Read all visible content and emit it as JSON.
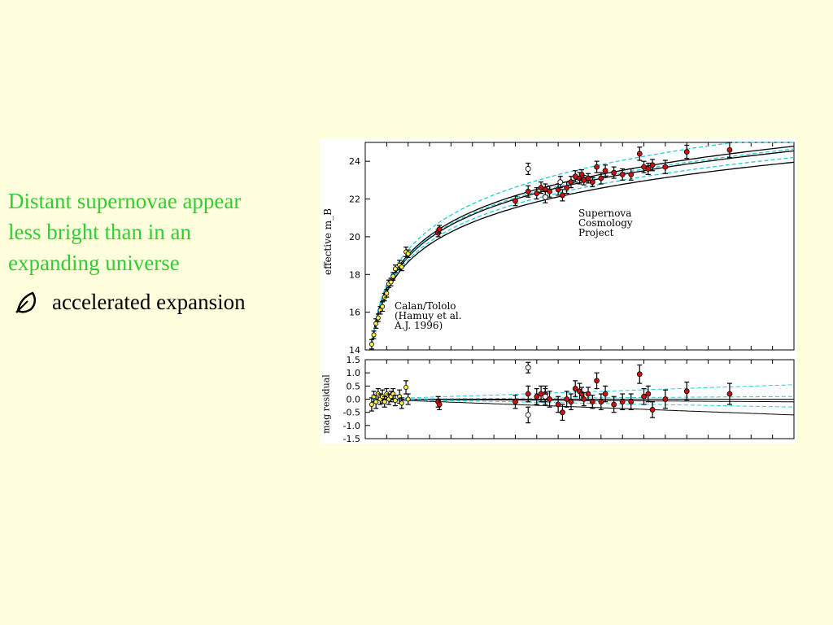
{
  "slide": {
    "main_text": "Distant supernovae  appear\nless bright than  in an\nexpanding universe",
    "bullet_icon": "leaf-bullet-icon",
    "bullet_text": "accelerated expansion",
    "colors": {
      "background": "#FFFFDD",
      "green_text": "#33CC33",
      "bullet_text": "#000000"
    }
  },
  "figure_annotations": {
    "scp": "Supernova\nCosmology\nProject",
    "calan": "Calan/Tololo\n(Hamuy et al.\nA.J. 1996)"
  },
  "chart_data": [
    {
      "type": "scatter",
      "title": "",
      "xlabel": "",
      "ylabel": "effective m_B",
      "ylim": [
        14,
        25
      ],
      "xlim": [
        0,
        1
      ],
      "yticks": [
        14,
        16,
        18,
        20,
        22,
        24
      ],
      "grid": false,
      "series": [
        {
          "name": "Calan/Tololo",
          "color": "#FFEE44",
          "marker": "circle",
          "x": [
            0.015,
            0.02,
            0.025,
            0.03,
            0.035,
            0.04,
            0.045,
            0.05,
            0.055,
            0.06,
            0.065,
            0.07,
            0.08,
            0.085,
            0.095,
            0.1
          ],
          "y": [
            14.3,
            14.8,
            15.4,
            15.7,
            16.1,
            16.3,
            16.8,
            17.0,
            17.5,
            17.6,
            17.9,
            18.3,
            18.5,
            18.4,
            19.2,
            19.1
          ],
          "err": [
            0.25,
            0.2,
            0.25,
            0.2,
            0.2,
            0.25,
            0.2,
            0.2,
            0.2,
            0.2,
            0.2,
            0.2,
            0.25,
            0.2,
            0.25,
            0.2
          ]
        },
        {
          "name": "Supernova Cosmology Project",
          "color": "#CC1111",
          "marker": "circle",
          "x": [
            0.17,
            0.173,
            0.35,
            0.38,
            0.4,
            0.41,
            0.42,
            0.43,
            0.45,
            0.46,
            0.47,
            0.48,
            0.49,
            0.5,
            0.505,
            0.51,
            0.52,
            0.53,
            0.54,
            0.55,
            0.56,
            0.58,
            0.6,
            0.62,
            0.64,
            0.65,
            0.66,
            0.67,
            0.7,
            0.75,
            0.85
          ],
          "y": [
            20.2,
            20.4,
            21.9,
            22.4,
            22.3,
            22.6,
            22.5,
            22.4,
            22.5,
            22.2,
            22.6,
            22.9,
            23.2,
            23.1,
            23.3,
            23.0,
            23.1,
            22.9,
            23.7,
            23.1,
            23.5,
            23.4,
            23.3,
            23.3,
            24.4,
            23.7,
            23.6,
            23.8,
            23.7,
            24.5,
            24.6
          ],
          "err": [
            0.2,
            0.2,
            0.25,
            0.3,
            0.3,
            0.3,
            0.3,
            0.3,
            0.3,
            0.3,
            0.3,
            0.3,
            0.3,
            0.3,
            0.25,
            0.25,
            0.25,
            0.25,
            0.3,
            0.3,
            0.3,
            0.3,
            0.3,
            0.3,
            0.35,
            0.3,
            0.3,
            0.3,
            0.35,
            0.35,
            0.4
          ]
        },
        {
          "name": "",
          "color": "#FFFFFF",
          "marker": "open-circle",
          "x": [
            0.38,
            0.42,
            0.455
          ],
          "y": [
            23.6,
            22.1,
            22.9
          ],
          "err": [
            0.3,
            0.3,
            0.3
          ]
        }
      ],
      "models": [
        {
          "style": "solid",
          "color": "#000000",
          "y_at_1": 23.95
        },
        {
          "style": "solid",
          "color": "#000000",
          "y_at_1": 24.55
        },
        {
          "style": "solid",
          "color": "#000000",
          "y_at_1": 24.8
        },
        {
          "style": "dashed",
          "color": "#22CCDD",
          "y_at_1": 24.2
        },
        {
          "style": "dashed",
          "color": "#22CCDD",
          "y_at_1": 24.65
        },
        {
          "style": "dashed",
          "color": "#22CCDD",
          "y_at_1": 25.4
        }
      ]
    },
    {
      "type": "scatter",
      "title": "",
      "xlabel": "",
      "ylabel": "mag residual",
      "ylim": [
        -1.5,
        1.5
      ],
      "xlim": [
        0,
        1
      ],
      "yticks": [
        -1.5,
        -1.0,
        -0.5,
        0.0,
        0.5,
        1.0,
        1.5
      ],
      "grid": false,
      "series": [
        {
          "name": "Calan/Tololo",
          "color": "#FFEE44",
          "marker": "circle",
          "x": [
            0.015,
            0.02,
            0.025,
            0.03,
            0.035,
            0.04,
            0.045,
            0.05,
            0.055,
            0.06,
            0.065,
            0.07,
            0.08,
            0.085,
            0.095,
            0.1
          ],
          "y": [
            -0.2,
            0.1,
            -0.1,
            0.2,
            0.0,
            0.1,
            -0.1,
            0.2,
            0.0,
            0.1,
            0.2,
            -0.05,
            0.1,
            -0.15,
            0.45,
            0.0
          ],
          "err": [
            0.25,
            0.2,
            0.25,
            0.2,
            0.2,
            0.25,
            0.2,
            0.2,
            0.2,
            0.2,
            0.2,
            0.2,
            0.25,
            0.2,
            0.25,
            0.2
          ]
        },
        {
          "name": "Supernova Cosmology Project",
          "color": "#CC1111",
          "marker": "circle",
          "x": [
            0.17,
            0.173,
            0.35,
            0.38,
            0.4,
            0.41,
            0.42,
            0.43,
            0.45,
            0.46,
            0.47,
            0.48,
            0.49,
            0.5,
            0.505,
            0.51,
            0.52,
            0.53,
            0.54,
            0.55,
            0.56,
            0.58,
            0.6,
            0.62,
            0.64,
            0.65,
            0.66,
            0.67,
            0.7,
            0.75,
            0.85
          ],
          "y": [
            -0.1,
            -0.2,
            -0.1,
            0.2,
            0.1,
            0.2,
            0.2,
            0.0,
            -0.2,
            -0.5,
            0.0,
            -0.1,
            0.4,
            0.3,
            0.2,
            0.0,
            0.2,
            -0.1,
            0.7,
            -0.1,
            0.2,
            -0.2,
            -0.1,
            -0.1,
            0.95,
            0.1,
            0.2,
            -0.4,
            0.0,
            0.3,
            0.2
          ],
          "err": [
            0.2,
            0.2,
            0.25,
            0.3,
            0.3,
            0.3,
            0.3,
            0.3,
            0.3,
            0.3,
            0.3,
            0.3,
            0.3,
            0.3,
            0.25,
            0.25,
            0.25,
            0.25,
            0.3,
            0.3,
            0.3,
            0.3,
            0.3,
            0.3,
            0.35,
            0.3,
            0.3,
            0.3,
            0.35,
            0.35,
            0.4
          ]
        },
        {
          "name": "",
          "color": "#FFFFFF",
          "marker": "open-circle",
          "x": [
            0.38,
            0.38,
            0.42
          ],
          "y": [
            1.2,
            -0.6,
            0.1
          ],
          "err": [
            0.2,
            0.3,
            0.3
          ]
        }
      ],
      "models": [
        {
          "style": "solid",
          "color": "#000000",
          "y_at_1": -0.6
        },
        {
          "style": "solid",
          "color": "#000000",
          "y_at_1": 0.0
        },
        {
          "style": "solid",
          "color": "#000000",
          "y_at_1": -0.1
        },
        {
          "style": "dashed",
          "color": "#22CCDD",
          "y_at_1": -0.3
        },
        {
          "style": "dashed",
          "color": "#22CCDD",
          "y_at_1": 0.1
        },
        {
          "style": "dashed",
          "color": "#22CCDD",
          "y_at_1": 0.55
        }
      ]
    }
  ]
}
